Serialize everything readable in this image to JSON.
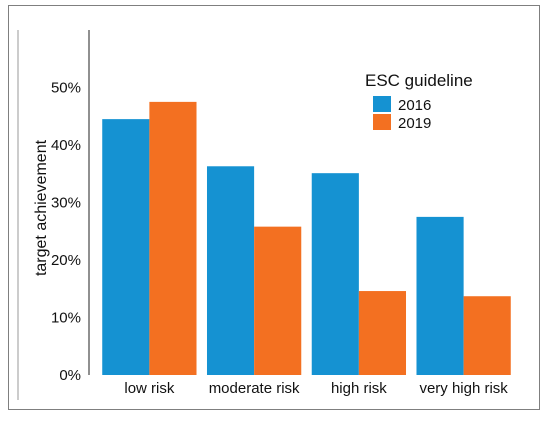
{
  "chart_data": {
    "type": "bar",
    "title": "",
    "xlabel": "",
    "ylabel": "target achievement",
    "categories": [
      "low risk",
      "moderate risk",
      "high risk",
      "very high risk"
    ],
    "series": [
      {
        "name": "2016",
        "values": [
          44.5,
          36.3,
          35.1,
          27.5
        ],
        "color": "#1592d2"
      },
      {
        "name": "2019",
        "values": [
          47.5,
          25.8,
          14.6,
          13.7
        ],
        "color": "#f37021"
      }
    ],
    "ylim": [
      0,
      60
    ],
    "yticks": [
      0,
      10,
      20,
      30,
      40,
      50
    ],
    "ytick_labels": [
      "0%",
      "10%",
      "20%",
      "30%",
      "40%",
      "50%"
    ],
    "grid": false,
    "legend": {
      "title": "ESC guideline",
      "placement": "top-right"
    }
  }
}
